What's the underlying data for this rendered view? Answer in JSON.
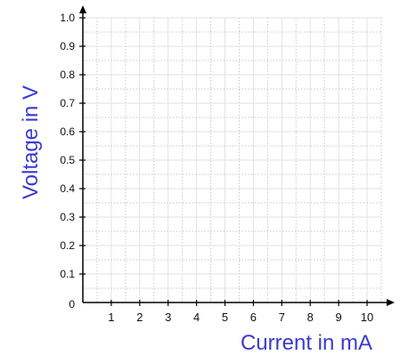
{
  "chart_data": {
    "type": "scatter",
    "title": "",
    "xlabel": "Current in mA",
    "ylabel": "Voltage in V",
    "x_ticks": [
      "1",
      "2",
      "3",
      "4",
      "5",
      "6",
      "7",
      "8",
      "9",
      "10"
    ],
    "y_ticks": [
      "0.1",
      "0.2",
      "0.3",
      "0.4",
      "0.5",
      "0.6",
      "0.7",
      "0.8",
      "0.9",
      "1.0"
    ],
    "origin_label": "0",
    "xlim": [
      0,
      10.5
    ],
    "ylim": [
      0,
      1.0
    ],
    "grid": true,
    "series": [],
    "colors": {
      "axis_label": "#3a3ad0",
      "grid_dotted": "#c8c8c8",
      "grid_solid": "#e2e2e2",
      "axis": "#000000",
      "tick_text": "#111111"
    }
  }
}
